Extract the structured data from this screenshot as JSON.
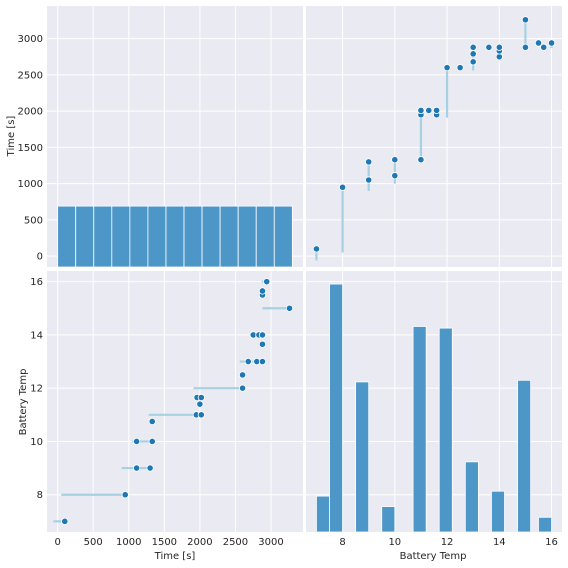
{
  "chart_data": {
    "type": "pairplot",
    "variables": [
      "Time [s]",
      "Battery Temp"
    ],
    "colors": {
      "panel_bg": "#eaeaf2",
      "grid": "#ffffff",
      "bar": "#4c96c8",
      "bar_edge": "#ffffff",
      "point": "#1f77b4",
      "line": "#a6d1e3"
    },
    "panels": {
      "time_hist": {
        "type": "bar",
        "bin_edges": [
          0,
          253.8,
          507.7,
          761.5,
          1015.4,
          1269.2,
          1523.1,
          1776.9,
          2030.8,
          2284.6,
          2538.5,
          2792.3,
          3046.2,
          3300
        ],
        "counts": [
          690,
          690,
          690,
          690,
          690,
          690,
          690,
          690,
          690,
          690,
          690,
          690,
          690
        ],
        "xlim": [
          -150,
          3450
        ]
      },
      "temp_vs_time": {
        "type": "scatter",
        "points": [
          {
            "x": 7,
            "y": 100
          },
          {
            "x": 8,
            "y": 950
          },
          {
            "x": 9,
            "y": 1050
          },
          {
            "x": 9,
            "y": 1300
          },
          {
            "x": 10,
            "y": 1110
          },
          {
            "x": 10,
            "y": 1330
          },
          {
            "x": 11,
            "y": 1330
          },
          {
            "x": 11,
            "y": 1950
          },
          {
            "x": 11,
            "y": 2010
          },
          {
            "x": 11.3,
            "y": 2010
          },
          {
            "x": 11.6,
            "y": 1950
          },
          {
            "x": 11.6,
            "y": 2010
          },
          {
            "x": 12,
            "y": 2600
          },
          {
            "x": 12.5,
            "y": 2600
          },
          {
            "x": 13,
            "y": 2680
          },
          {
            "x": 13,
            "y": 2790
          },
          {
            "x": 13,
            "y": 2880
          },
          {
            "x": 13.6,
            "y": 2880
          },
          {
            "x": 14,
            "y": 2750
          },
          {
            "x": 14,
            "y": 2830
          },
          {
            "x": 14,
            "y": 2880
          },
          {
            "x": 15,
            "y": 3260
          },
          {
            "x": 15,
            "y": 2880
          },
          {
            "x": 15.5,
            "y": 2940
          },
          {
            "x": 15.7,
            "y": 2880
          },
          {
            "x": 16,
            "y": 2940
          }
        ],
        "segments": [
          [
            7,
            -60,
            100
          ],
          [
            8,
            50,
            950
          ],
          [
            9,
            900,
            1300
          ],
          [
            10,
            1000,
            1330
          ],
          [
            11,
            1280,
            2010
          ],
          [
            12,
            1910,
            2600
          ],
          [
            13,
            2560,
            2880
          ],
          [
            14,
            2700,
            2880
          ],
          [
            15,
            2880,
            3260
          ],
          [
            16,
            2870,
            2940
          ]
        ],
        "xlim": [
          6.6,
          16.4
        ],
        "ylim": [
          -150,
          3450
        ]
      },
      "time_vs_temp": {
        "type": "scatter",
        "points": [
          {
            "x": 100,
            "y": 7
          },
          {
            "x": 950,
            "y": 8
          },
          {
            "x": 1110,
            "y": 9
          },
          {
            "x": 1300,
            "y": 9
          },
          {
            "x": 1110,
            "y": 10
          },
          {
            "x": 1330,
            "y": 10
          },
          {
            "x": 1330,
            "y": 10.75
          },
          {
            "x": 1950,
            "y": 11
          },
          {
            "x": 2020,
            "y": 11
          },
          {
            "x": 2000,
            "y": 11.4
          },
          {
            "x": 1960,
            "y": 11.65
          },
          {
            "x": 2020,
            "y": 11.65
          },
          {
            "x": 2600,
            "y": 12
          },
          {
            "x": 2600,
            "y": 12.5
          },
          {
            "x": 2680,
            "y": 13
          },
          {
            "x": 2800,
            "y": 13
          },
          {
            "x": 2880,
            "y": 13
          },
          {
            "x": 2880,
            "y": 13.65
          },
          {
            "x": 2750,
            "y": 14
          },
          {
            "x": 2830,
            "y": 14
          },
          {
            "x": 2880,
            "y": 14
          },
          {
            "x": 3260,
            "y": 15
          },
          {
            "x": 2880,
            "y": 15.5
          },
          {
            "x": 2880,
            "y": 15.65
          },
          {
            "x": 2940,
            "y": 16
          }
        ],
        "segments": [
          [
            7,
            -60,
            100
          ],
          [
            8,
            50,
            950
          ],
          [
            9,
            900,
            1300
          ],
          [
            10,
            1050,
            1330
          ],
          [
            11,
            1280,
            2020
          ],
          [
            12,
            1910,
            2600
          ],
          [
            13,
            2560,
            2880
          ],
          [
            14,
            2700,
            2880
          ],
          [
            15,
            2880,
            3260
          ],
          [
            16,
            2870,
            2940
          ]
        ],
        "xlim": [
          -150,
          3450
        ],
        "ylim": [
          6.6,
          16.4
        ]
      },
      "temp_hist": {
        "type": "bar",
        "bins": [
          {
            "x0": 7.0,
            "x1": 7.5,
            "count": 110
          },
          {
            "x0": 7.5,
            "x1": 8.0,
            "count": 760
          },
          {
            "x0": 8.5,
            "x1": 9.0,
            "count": 460
          },
          {
            "x0": 9.5,
            "x1": 10.0,
            "count": 78
          },
          {
            "x0": 10.7,
            "x1": 11.2,
            "count": 630
          },
          {
            "x0": 11.7,
            "x1": 12.2,
            "count": 625
          },
          {
            "x0": 12.7,
            "x1": 13.2,
            "count": 215
          },
          {
            "x0": 13.7,
            "x1": 14.2,
            "count": 125
          },
          {
            "x0": 14.7,
            "x1": 15.2,
            "count": 465
          },
          {
            "x0": 15.5,
            "x1": 16.0,
            "count": 45
          }
        ],
        "xlim": [
          6.6,
          16.4
        ]
      }
    },
    "axes": {
      "time": {
        "label": "Time [s]",
        "ticks": [
          0,
          500,
          1000,
          1500,
          2000,
          2500,
          3000
        ],
        "tick_labels": [
          "0",
          "500",
          "1000",
          "1500",
          "2000",
          "2500",
          "3000"
        ]
      },
      "temp": {
        "label": "Battery Temp",
        "ticks": [
          8,
          10,
          12,
          14,
          16
        ],
        "tick_labels": [
          "8",
          "10",
          "12",
          "14",
          "16"
        ]
      }
    }
  }
}
